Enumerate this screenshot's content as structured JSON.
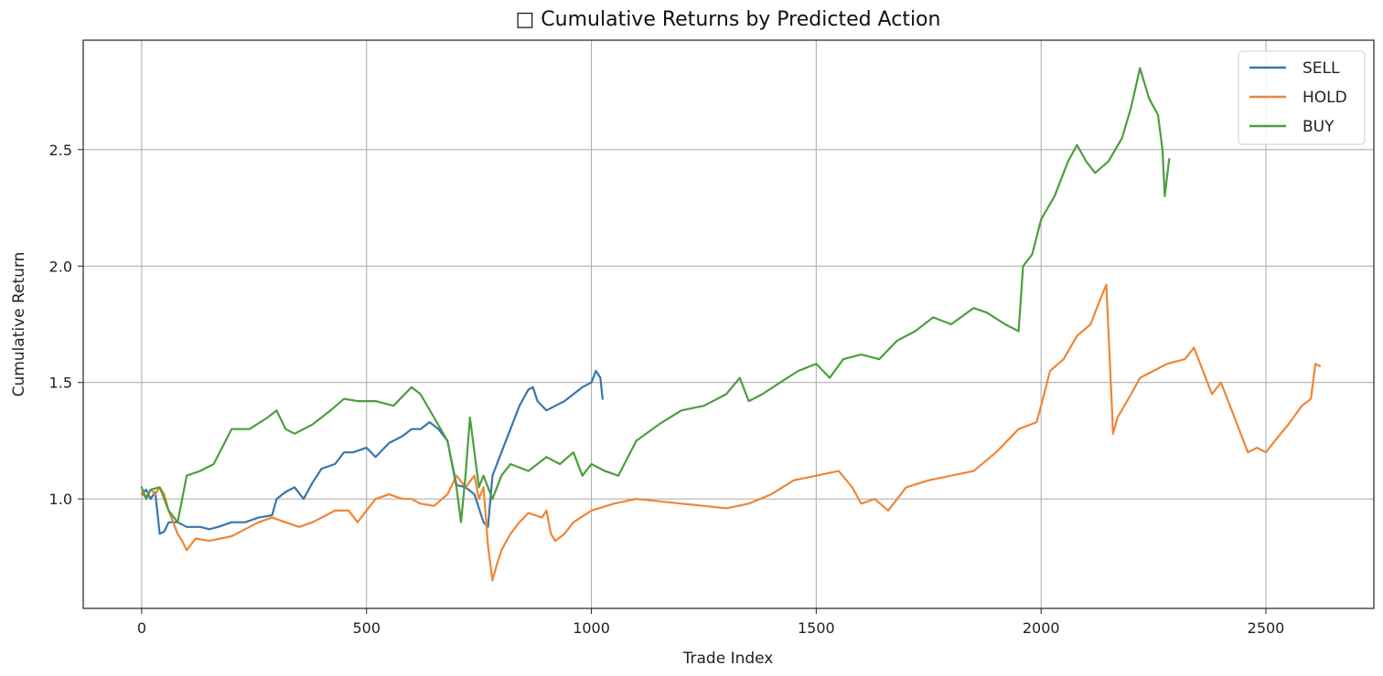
{
  "chart_data": {
    "type": "line",
    "title": "□ Cumulative Returns by Predicted Action",
    "xlabel": "Trade Index",
    "ylabel": "Cumulative Return",
    "xlim": [
      -130,
      2740
    ],
    "ylim": [
      0.53,
      2.97
    ],
    "xticks": [
      0,
      500,
      1000,
      1500,
      2000,
      2500
    ],
    "yticks": [
      1.0,
      1.5,
      2.0,
      2.5
    ],
    "xtick_labels": [
      "0",
      "500",
      "1000",
      "1500",
      "2000",
      "2500"
    ],
    "ytick_labels": [
      "1.0",
      "1.5",
      "2.0",
      "2.5"
    ],
    "grid": true,
    "legend_position": "top-right",
    "series": [
      {
        "name": "SELL",
        "color": "#3a75af",
        "points": [
          [
            0,
            1.02
          ],
          [
            10,
            1.04
          ],
          [
            20,
            1.0
          ],
          [
            30,
            1.03
          ],
          [
            40,
            0.85
          ],
          [
            50,
            0.86
          ],
          [
            60,
            0.9
          ],
          [
            80,
            0.9
          ],
          [
            100,
            0.88
          ],
          [
            130,
            0.88
          ],
          [
            150,
            0.87
          ],
          [
            170,
            0.88
          ],
          [
            200,
            0.9
          ],
          [
            230,
            0.9
          ],
          [
            260,
            0.92
          ],
          [
            290,
            0.93
          ],
          [
            300,
            1.0
          ],
          [
            320,
            1.03
          ],
          [
            340,
            1.05
          ],
          [
            360,
            1.0
          ],
          [
            380,
            1.07
          ],
          [
            400,
            1.13
          ],
          [
            430,
            1.15
          ],
          [
            450,
            1.2
          ],
          [
            470,
            1.2
          ],
          [
            500,
            1.22
          ],
          [
            520,
            1.18
          ],
          [
            550,
            1.24
          ],
          [
            580,
            1.27
          ],
          [
            600,
            1.3
          ],
          [
            620,
            1.3
          ],
          [
            640,
            1.33
          ],
          [
            660,
            1.3
          ],
          [
            680,
            1.25
          ],
          [
            700,
            1.06
          ],
          [
            720,
            1.05
          ],
          [
            740,
            1.02
          ],
          [
            760,
            0.9
          ],
          [
            770,
            0.88
          ],
          [
            780,
            1.1
          ],
          [
            800,
            1.2
          ],
          [
            820,
            1.3
          ],
          [
            840,
            1.4
          ],
          [
            860,
            1.47
          ],
          [
            870,
            1.48
          ],
          [
            880,
            1.42
          ],
          [
            900,
            1.38
          ],
          [
            920,
            1.4
          ],
          [
            940,
            1.42
          ],
          [
            960,
            1.45
          ],
          [
            980,
            1.48
          ],
          [
            1000,
            1.5
          ],
          [
            1010,
            1.55
          ],
          [
            1020,
            1.52
          ],
          [
            1025,
            1.43
          ]
        ]
      },
      {
        "name": "HOLD",
        "color": "#ef8636",
        "points": [
          [
            0,
            1.02
          ],
          [
            10,
            1.01
          ],
          [
            20,
            1.04
          ],
          [
            30,
            1.02
          ],
          [
            40,
            1.05
          ],
          [
            50,
            1.02
          ],
          [
            60,
            0.95
          ],
          [
            70,
            0.9
          ],
          [
            80,
            0.85
          ],
          [
            90,
            0.82
          ],
          [
            100,
            0.78
          ],
          [
            120,
            0.83
          ],
          [
            150,
            0.82
          ],
          [
            200,
            0.84
          ],
          [
            230,
            0.87
          ],
          [
            260,
            0.9
          ],
          [
            290,
            0.92
          ],
          [
            320,
            0.9
          ],
          [
            350,
            0.88
          ],
          [
            380,
            0.9
          ],
          [
            400,
            0.92
          ],
          [
            430,
            0.95
          ],
          [
            460,
            0.95
          ],
          [
            480,
            0.9
          ],
          [
            500,
            0.95
          ],
          [
            520,
            1.0
          ],
          [
            550,
            1.02
          ],
          [
            580,
            1.0
          ],
          [
            600,
            1.0
          ],
          [
            620,
            0.98
          ],
          [
            650,
            0.97
          ],
          [
            680,
            1.02
          ],
          [
            700,
            1.1
          ],
          [
            720,
            1.05
          ],
          [
            740,
            1.1
          ],
          [
            750,
            1.0
          ],
          [
            760,
            1.05
          ],
          [
            770,
            0.8
          ],
          [
            780,
            0.65
          ],
          [
            790,
            0.72
          ],
          [
            800,
            0.78
          ],
          [
            820,
            0.85
          ],
          [
            840,
            0.9
          ],
          [
            860,
            0.94
          ],
          [
            890,
            0.92
          ],
          [
            900,
            0.95
          ],
          [
            910,
            0.85
          ],
          [
            920,
            0.82
          ],
          [
            940,
            0.85
          ],
          [
            960,
            0.9
          ],
          [
            1000,
            0.95
          ],
          [
            1050,
            0.98
          ],
          [
            1100,
            1.0
          ],
          [
            1150,
            0.99
          ],
          [
            1200,
            0.98
          ],
          [
            1250,
            0.97
          ],
          [
            1300,
            0.96
          ],
          [
            1350,
            0.98
          ],
          [
            1400,
            1.02
          ],
          [
            1450,
            1.08
          ],
          [
            1500,
            1.1
          ],
          [
            1550,
            1.12
          ],
          [
            1580,
            1.05
          ],
          [
            1600,
            0.98
          ],
          [
            1630,
            1.0
          ],
          [
            1660,
            0.95
          ],
          [
            1700,
            1.05
          ],
          [
            1750,
            1.08
          ],
          [
            1800,
            1.1
          ],
          [
            1850,
            1.12
          ],
          [
            1900,
            1.2
          ],
          [
            1950,
            1.3
          ],
          [
            1990,
            1.33
          ],
          [
            2000,
            1.4
          ],
          [
            2020,
            1.55
          ],
          [
            2050,
            1.6
          ],
          [
            2080,
            1.7
          ],
          [
            2110,
            1.75
          ],
          [
            2130,
            1.85
          ],
          [
            2145,
            1.92
          ],
          [
            2155,
            1.5
          ],
          [
            2160,
            1.28
          ],
          [
            2170,
            1.35
          ],
          [
            2200,
            1.45
          ],
          [
            2220,
            1.52
          ],
          [
            2250,
            1.55
          ],
          [
            2280,
            1.58
          ],
          [
            2320,
            1.6
          ],
          [
            2340,
            1.65
          ],
          [
            2360,
            1.55
          ],
          [
            2380,
            1.45
          ],
          [
            2400,
            1.5
          ],
          [
            2420,
            1.4
          ],
          [
            2440,
            1.3
          ],
          [
            2460,
            1.2
          ],
          [
            2480,
            1.22
          ],
          [
            2500,
            1.2
          ],
          [
            2520,
            1.25
          ],
          [
            2550,
            1.32
          ],
          [
            2580,
            1.4
          ],
          [
            2600,
            1.43
          ],
          [
            2610,
            1.58
          ],
          [
            2620,
            1.57
          ]
        ]
      },
      {
        "name": "BUY",
        "color": "#4c9e3e",
        "points": [
          [
            0,
            1.05
          ],
          [
            10,
            1.0
          ],
          [
            20,
            1.04
          ],
          [
            40,
            1.05
          ],
          [
            60,
            0.95
          ],
          [
            80,
            0.9
          ],
          [
            100,
            1.1
          ],
          [
            130,
            1.12
          ],
          [
            160,
            1.15
          ],
          [
            200,
            1.3
          ],
          [
            240,
            1.3
          ],
          [
            280,
            1.35
          ],
          [
            300,
            1.38
          ],
          [
            320,
            1.3
          ],
          [
            340,
            1.28
          ],
          [
            380,
            1.32
          ],
          [
            420,
            1.38
          ],
          [
            450,
            1.43
          ],
          [
            480,
            1.42
          ],
          [
            520,
            1.42
          ],
          [
            560,
            1.4
          ],
          [
            600,
            1.48
          ],
          [
            620,
            1.45
          ],
          [
            650,
            1.35
          ],
          [
            680,
            1.25
          ],
          [
            700,
            1.05
          ],
          [
            710,
            0.9
          ],
          [
            720,
            1.1
          ],
          [
            730,
            1.35
          ],
          [
            740,
            1.2
          ],
          [
            750,
            1.05
          ],
          [
            760,
            1.1
          ],
          [
            780,
            1.0
          ],
          [
            800,
            1.1
          ],
          [
            820,
            1.15
          ],
          [
            860,
            1.12
          ],
          [
            900,
            1.18
          ],
          [
            930,
            1.15
          ],
          [
            960,
            1.2
          ],
          [
            980,
            1.1
          ],
          [
            1000,
            1.15
          ],
          [
            1030,
            1.12
          ],
          [
            1060,
            1.1
          ],
          [
            1100,
            1.25
          ],
          [
            1150,
            1.32
          ],
          [
            1200,
            1.38
          ],
          [
            1250,
            1.4
          ],
          [
            1300,
            1.45
          ],
          [
            1330,
            1.52
          ],
          [
            1350,
            1.42
          ],
          [
            1380,
            1.45
          ],
          [
            1420,
            1.5
          ],
          [
            1460,
            1.55
          ],
          [
            1500,
            1.58
          ],
          [
            1530,
            1.52
          ],
          [
            1560,
            1.6
          ],
          [
            1600,
            1.62
          ],
          [
            1640,
            1.6
          ],
          [
            1680,
            1.68
          ],
          [
            1720,
            1.72
          ],
          [
            1760,
            1.78
          ],
          [
            1800,
            1.75
          ],
          [
            1850,
            1.82
          ],
          [
            1880,
            1.8
          ],
          [
            1920,
            1.75
          ],
          [
            1950,
            1.72
          ],
          [
            1960,
            2.0
          ],
          [
            1980,
            2.05
          ],
          [
            2000,
            2.2
          ],
          [
            2030,
            2.3
          ],
          [
            2060,
            2.45
          ],
          [
            2080,
            2.52
          ],
          [
            2100,
            2.45
          ],
          [
            2120,
            2.4
          ],
          [
            2150,
            2.45
          ],
          [
            2180,
            2.55
          ],
          [
            2200,
            2.68
          ],
          [
            2220,
            2.85
          ],
          [
            2240,
            2.72
          ],
          [
            2260,
            2.65
          ],
          [
            2270,
            2.5
          ],
          [
            2275,
            2.3
          ],
          [
            2280,
            2.38
          ],
          [
            2285,
            2.46
          ]
        ]
      }
    ]
  }
}
